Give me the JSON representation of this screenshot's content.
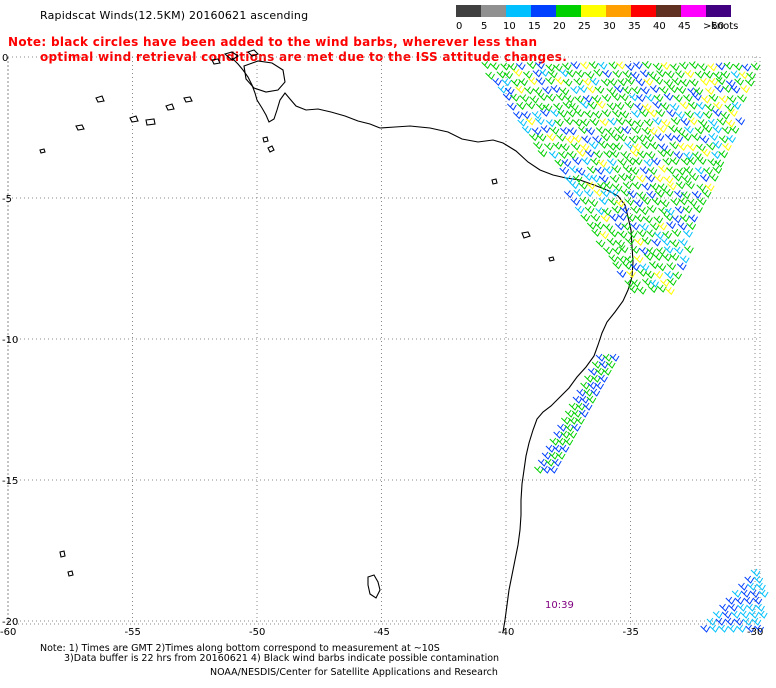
{
  "header": {
    "title": "Rapidscat Winds(12.5KM) 20160621 ascending"
  },
  "note": {
    "line1": "Note: black circles have been added to the wind barbs, wherever less than",
    "line2": "optimal wind retrieval conditions are met due to the ISS attitude changes."
  },
  "legend": {
    "units": "knots",
    "bins": [
      {
        "label": "0",
        "color": "#404040"
      },
      {
        "label": "5",
        "color": "#909090"
      },
      {
        "label": "10",
        "color": "#00c0ff"
      },
      {
        "label": "15",
        "color": "#0040ff"
      },
      {
        "label": "20",
        "color": "#00d000"
      },
      {
        "label": "25",
        "color": "#ffff00"
      },
      {
        "label": "30",
        "color": "#ffa000"
      },
      {
        "label": "35",
        "color": "#ff0000"
      },
      {
        "label": "40",
        "color": "#603020"
      },
      {
        "label": "45",
        "color": "#ff00ff"
      },
      {
        "label": ">50",
        "color": "#400080"
      }
    ]
  },
  "map": {
    "lat_labels": [
      "0",
      "-5",
      "-10",
      "-15",
      "-20"
    ],
    "lon_labels": [
      "-60",
      "-55",
      "-50",
      "-45",
      "-40",
      "-35",
      "-30"
    ],
    "pass_time": "10:39"
  },
  "footer": {
    "line1": "Note: 1) Times are GMT 2)Times along bottom correspond to measurement at ~10S",
    "line2": "3)Data buffer is 22 hrs from 20160621 4) Black wind barbs indicate possible contamination",
    "line3": "NOAA/NESDIS/Center for Satellite Applications and Research"
  }
}
